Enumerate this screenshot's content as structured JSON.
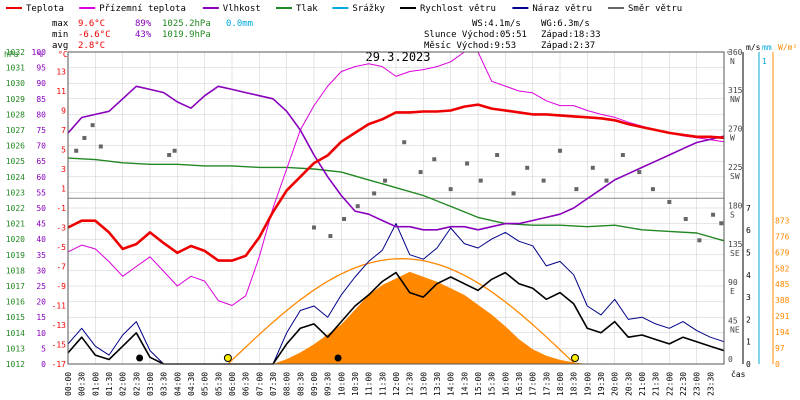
{
  "chart_data": {
    "type": "line",
    "title": "29.3.2023",
    "legend": {
      "placement": "top",
      "items": [
        {
          "name": "Teplota",
          "color": "#ee0000"
        },
        {
          "name": "Přízemní teplota",
          "color": "#dd00dd"
        },
        {
          "name": "Vlhkost",
          "color": "#8800bb"
        },
        {
          "name": "Tlak",
          "color": "#228822"
        },
        {
          "name": "Srážky",
          "color": "#00aadd"
        },
        {
          "name": "Rychlost větru",
          "color": "#000000"
        },
        {
          "name": "Náraz větru",
          "color": "#000088"
        },
        {
          "name": "Směr větru",
          "color": "#666666"
        }
      ]
    },
    "stats": {
      "labels": {
        "max": "max",
        "min": "min",
        "avg": "avg"
      },
      "max": {
        "temp": "9.6°C",
        "hum": "89%",
        "press": "1025.2hPa",
        "rain": "0.0mm"
      },
      "min": {
        "temp": "-6.6°C",
        "hum": "43%",
        "press": "1019.9hPa"
      },
      "avg": {
        "temp": "2.8°C"
      },
      "wind_speed": "WS:4.1m/s",
      "wind_gust": "WG:6.3m/s",
      "sunrise": "Slunce Východ:05:51",
      "sunset": "Západ:18:33",
      "moonrise": "Měsíc  Východ:9:53",
      "moonset": "Západ:2:37"
    },
    "axis_units": {
      "hpa": "hPa",
      "pct": "%",
      "degc": "°C",
      "deg": "°",
      "ms": "m/s",
      "mm": "mm",
      "wm2": "W/m²",
      "x": "čas"
    },
    "axes": {
      "pressure_hpa": {
        "range": [
          1012,
          1032
        ],
        "ticks": [
          "1032",
          "1031",
          "1030",
          "1029",
          "1028",
          "1027",
          "1026",
          "1025",
          "1024",
          "1023",
          "1022",
          "1021",
          "1020",
          "1019",
          "1018",
          "1017",
          "1016",
          "1015",
          "1014",
          "1013",
          "1012"
        ]
      },
      "humidity_pct": {
        "range": [
          0,
          100
        ],
        "ticks": [
          "100",
          "95",
          "90",
          "85",
          "80",
          "75",
          "70",
          "65",
          "60",
          "55",
          "50",
          "45",
          "40",
          "35",
          "30",
          "25",
          "20",
          "15",
          "10",
          "5",
          "0"
        ]
      },
      "temperature_c": {
        "range": [
          -17,
          15
        ],
        "ticks": [
          "13",
          "11",
          "9",
          "7",
          "5",
          "3",
          "1",
          "-1",
          "-3",
          "-5",
          "-7",
          "-9",
          "-11",
          "-13",
          "-15",
          "-17"
        ]
      },
      "wind_dir_deg": {
        "ticks": [
          {
            "v": "360",
            "l": "N"
          },
          {
            "v": "315",
            "l": "NW"
          },
          {
            "v": "270",
            "l": "W"
          },
          {
            "v": "225",
            "l": "SW"
          },
          {
            "v": "180",
            "l": "S"
          },
          {
            "v": "135",
            "l": "SE"
          },
          {
            "v": "90",
            "l": "E"
          },
          {
            "v": "45",
            "l": "NE"
          },
          {
            "v": "0",
            "l": ""
          }
        ]
      },
      "wind_ms": {
        "ticks": [
          "7",
          "6",
          "5",
          "4",
          "3",
          "2",
          "1",
          "0"
        ]
      },
      "rain_mm": {
        "ticks": [
          "1",
          "0"
        ]
      },
      "radiation_wm2": {
        "ticks": [
          "873",
          "776",
          "679",
          "582",
          "485",
          "388",
          "291",
          "194",
          "97",
          "0"
        ]
      },
      "time": {
        "ticks": [
          "00:00",
          "00:30",
          "01:00",
          "01:30",
          "02:00",
          "02:30",
          "03:00",
          "03:30",
          "04:00",
          "04:30",
          "05:00",
          "05:30",
          "06:00",
          "06:30",
          "07:00",
          "07:30",
          "08:00",
          "08:30",
          "09:00",
          "09:30",
          "10:00",
          "10:30",
          "11:00",
          "11:30",
          "12:00",
          "12:30",
          "13:00",
          "13:30",
          "14:00",
          "14:30",
          "15:00",
          "15:30",
          "16:00",
          "16:30",
          "17:00",
          "17:30",
          "18:00",
          "18:30",
          "19:00",
          "19:30",
          "20:00",
          "20:30",
          "21:00",
          "21:30",
          "22:00",
          "22:30",
          "23:00",
          "23:30"
        ]
      }
    },
    "series": [
      {
        "name": "Teplota",
        "unit": "°C",
        "x": [
          0,
          0.5,
          1,
          1.5,
          2,
          2.5,
          3,
          3.5,
          4,
          4.5,
          5,
          5.5,
          6,
          6.5,
          7,
          7.5,
          8,
          8.5,
          9,
          9.5,
          10,
          10.5,
          11,
          11.5,
          12,
          12.5,
          13,
          13.5,
          14,
          14.5,
          15,
          15.5,
          16,
          16.5,
          17,
          17.5,
          18,
          18.5,
          19,
          19.5,
          20,
          20.5,
          21,
          21.5,
          22,
          22.5,
          23,
          23.5,
          24
        ],
        "y": [
          -3,
          -2.3,
          -2.3,
          -3.5,
          -5.2,
          -4.7,
          -3.5,
          -4.6,
          -5.6,
          -4.9,
          -5.4,
          -6.4,
          -6.4,
          -5.9,
          -4,
          -1.4,
          0.8,
          2.2,
          3.6,
          4.4,
          5.8,
          6.7,
          7.6,
          8.1,
          8.8,
          8.8,
          8.9,
          8.9,
          9,
          9.4,
          9.6,
          9.2,
          9,
          8.8,
          8.6,
          8.6,
          8.5,
          8.4,
          8.3,
          8.2,
          8,
          7.6,
          7.3,
          7,
          6.7,
          6.5,
          6.3,
          6.3,
          6.2
        ]
      },
      {
        "name": "Přízemní teplota",
        "unit": "°C",
        "x": [
          0,
          0.5,
          1,
          1.5,
          2,
          2.5,
          3,
          3.5,
          4,
          4.5,
          5,
          5.5,
          6,
          6.5,
          7,
          7.5,
          8,
          8.5,
          9,
          9.5,
          10,
          10.5,
          11,
          11.5,
          12,
          12.5,
          13,
          13.5,
          14,
          14.5,
          15,
          15.5,
          16,
          16.5,
          17,
          17.5,
          18,
          18.5,
          19,
          19.5,
          20,
          20.5,
          21,
          21.5,
          22,
          22.5,
          23,
          23.5,
          24
        ],
        "y": [
          -5.5,
          -4.8,
          -5.2,
          -6.5,
          -8,
          -7,
          -6,
          -7.5,
          -9,
          -8,
          -8.5,
          -10.5,
          -11,
          -10,
          -6,
          -1,
          3,
          7,
          9.5,
          11.5,
          13,
          13.5,
          13.8,
          13.5,
          12.5,
          13,
          13.2,
          13.5,
          14,
          15,
          15,
          12,
          11.5,
          11,
          10.8,
          10,
          9.5,
          9.5,
          9,
          8.6,
          8.3,
          7.8,
          7.4,
          7,
          6.7,
          6.4,
          6.2,
          6,
          5.8
        ]
      },
      {
        "name": "Vlhkost",
        "unit": "%",
        "x": [
          0,
          0.5,
          1,
          1.5,
          2,
          2.5,
          3,
          3.5,
          4,
          4.5,
          5,
          5.5,
          6,
          6.5,
          7,
          7.5,
          8,
          8.5,
          9,
          9.5,
          10,
          10.5,
          11,
          11.5,
          12,
          12.5,
          13,
          13.5,
          14,
          14.5,
          15,
          15.5,
          16,
          16.5,
          17,
          17.5,
          18,
          18.5,
          19,
          19.5,
          20,
          20.5,
          21,
          21.5,
          22,
          22.5,
          23,
          23.5,
          24
        ],
        "y": [
          74,
          79,
          80,
          81,
          85,
          89,
          88,
          87,
          84,
          82,
          86,
          89,
          88,
          87,
          86,
          85,
          81,
          75,
          67,
          60,
          54,
          49,
          48,
          46,
          44,
          44,
          43,
          43,
          44,
          44,
          43,
          44,
          45,
          45,
          46,
          47,
          48,
          50,
          53,
          56,
          59,
          61,
          63,
          65,
          67,
          69,
          71,
          72,
          73
        ]
      },
      {
        "name": "Tlak",
        "unit": "hPa",
        "x": [
          0,
          1,
          2,
          3,
          4,
          5,
          6,
          7,
          8,
          9,
          10,
          11,
          12,
          13,
          14,
          15,
          16,
          17,
          18,
          19,
          20,
          21,
          22,
          23,
          24
        ],
        "y": [
          1025.2,
          1025.1,
          1024.9,
          1024.8,
          1024.8,
          1024.7,
          1024.7,
          1024.6,
          1024.6,
          1024.5,
          1024.3,
          1023.8,
          1023.3,
          1022.8,
          1022.1,
          1021.4,
          1021.0,
          1020.9,
          1020.9,
          1020.8,
          1020.9,
          1020.6,
          1020.5,
          1020.4,
          1019.9
        ]
      },
      {
        "name": "Rychlost větru",
        "unit": "m/s",
        "x": [
          0,
          0.5,
          1,
          1.5,
          2,
          2.5,
          3,
          3.5,
          4,
          4.5,
          5,
          5.5,
          6,
          6.5,
          7,
          7.5,
          8,
          8.5,
          9,
          9.5,
          10,
          10.5,
          11,
          11.5,
          12,
          12.5,
          13,
          13.5,
          14,
          14.5,
          15,
          15.5,
          16,
          16.5,
          17,
          17.5,
          18,
          18.5,
          19,
          19.5,
          20,
          20.5,
          21,
          21.5,
          22,
          22.5,
          23,
          23.5,
          24
        ],
        "y": [
          0.5,
          1.2,
          0.4,
          0.2,
          0.8,
          1.4,
          0.3,
          0,
          0,
          0,
          0,
          0,
          0,
          0,
          0,
          0,
          0.9,
          1.6,
          1.8,
          1.2,
          1.9,
          2.6,
          3.1,
          3.7,
          4.1,
          3.2,
          3.0,
          3.6,
          3.9,
          3.6,
          3.3,
          3.8,
          4.1,
          3.6,
          3.4,
          2.9,
          3.2,
          2.7,
          1.6,
          1.4,
          1.9,
          1.2,
          1.3,
          1.1,
          0.9,
          1.2,
          1.0,
          0.8,
          0.6
        ]
      },
      {
        "name": "Náraz větru",
        "unit": "m/s",
        "x": [
          0,
          0.5,
          1,
          1.5,
          2,
          2.5,
          3,
          3.5,
          4,
          4.5,
          5,
          5.5,
          6,
          6.5,
          7,
          7.5,
          8,
          8.5,
          9,
          9.5,
          10,
          10.5,
          11,
          11.5,
          12,
          12.5,
          13,
          13.5,
          14,
          14.5,
          15,
          15.5,
          16,
          16.5,
          17,
          17.5,
          18,
          18.5,
          19,
          19.5,
          20,
          20.5,
          21,
          21.5,
          22,
          22.5,
          23,
          23.5,
          24
        ],
        "y": [
          0.9,
          1.6,
          0.8,
          0.4,
          1.3,
          1.9,
          0.6,
          0,
          0,
          0,
          0,
          0,
          0,
          0,
          0,
          0,
          1.4,
          2.4,
          2.6,
          2.1,
          3.1,
          3.9,
          4.6,
          5.1,
          6.3,
          4.9,
          4.7,
          5.2,
          6.1,
          5.4,
          5.2,
          5.6,
          5.9,
          5.5,
          5.3,
          4.4,
          4.6,
          4.0,
          2.6,
          2.2,
          2.9,
          2.0,
          2.1,
          1.8,
          1.6,
          1.9,
          1.5,
          1.2,
          1.0
        ]
      },
      {
        "name": "Směr větru",
        "unit": "°",
        "x": [
          0.3,
          0.6,
          0.9,
          1.2,
          3.7,
          3.9,
          9.0,
          9.6,
          10.1,
          10.6,
          11.2,
          11.6,
          12.3,
          12.9,
          13.4,
          14.0,
          14.6,
          15.1,
          15.7,
          16.3,
          16.8,
          17.4,
          18.0,
          18.6,
          19.2,
          19.7,
          20.3,
          20.9,
          21.4,
          22.0,
          22.6,
          23.1,
          23.6,
          23.9
        ],
        "y": [
          250,
          265,
          280,
          255,
          245,
          250,
          160,
          150,
          170,
          185,
          200,
          215,
          260,
          225,
          240,
          205,
          235,
          215,
          245,
          200,
          230,
          215,
          250,
          205,
          230,
          215,
          245,
          225,
          205,
          190,
          170,
          145,
          175,
          165
        ]
      },
      {
        "name": "Slunce",
        "unit": "W/m²",
        "x": [
          7.5,
          8,
          8.5,
          9,
          9.5,
          10,
          10.5,
          11,
          11.5,
          12,
          12.5,
          13,
          13.5,
          14,
          14.5,
          15,
          15.5,
          16,
          16.5,
          17,
          17.5,
          18,
          18.5,
          19
        ],
        "y": [
          0,
          30,
          70,
          120,
          180,
          240,
          330,
          420,
          480,
          520,
          560,
          530,
          500,
          460,
          420,
          360,
          300,
          230,
          150,
          90,
          50,
          25,
          10,
          0
        ]
      }
    ],
    "sun_curve": {
      "name": "Teoretické sluneční záření",
      "rise": 5.85,
      "set": 18.55,
      "peak": 640
    },
    "markers": {
      "sunrise_h": 5.85,
      "sunset_h": 18.55,
      "moonrise_h": 9.88,
      "moonset_h": 2.62
    },
    "colors": {
      "temp": "#ee0000",
      "dew": "#dd00dd",
      "hum": "#8800bb",
      "press": "#228822",
      "rain": "#00aadd",
      "wind": "#000000",
      "gust": "#000088",
      "dir": "#666666",
      "rad": "#ff8800",
      "radline": "#ff8800",
      "grid": "#cccccc",
      "zero": "#888888"
    },
    "grid": true
  }
}
